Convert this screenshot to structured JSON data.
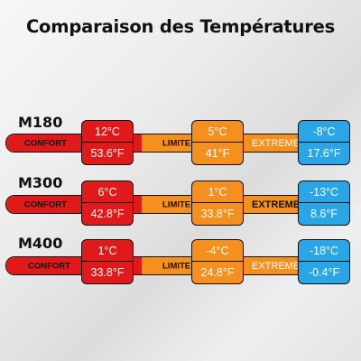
{
  "title": "Comparaison des Températures",
  "labels": {
    "comfort": "CONFORT",
    "limit": "LIMITE",
    "extreme": "EXTREME"
  },
  "colors": {
    "comfort": "#e01a1a",
    "limit": "#f5901e",
    "extreme": "#2aa6e6"
  },
  "rows": [
    {
      "model": "M180",
      "comfort": {
        "c": "12°C",
        "f": "53.6°F"
      },
      "limit": {
        "c": "5°C",
        "f": "41°F"
      },
      "extreme": {
        "c": "-8°C",
        "f": "17.6°F"
      }
    },
    {
      "model": "M300",
      "comfort": {
        "c": "6°C",
        "f": "42.8°F"
      },
      "limit": {
        "c": "1°C",
        "f": "33.8°F"
      },
      "extreme": {
        "c": "-13°C",
        "f": "8.6°F"
      }
    },
    {
      "model": "M400",
      "comfort": {
        "c": "1°C",
        "f": "33.8°F"
      },
      "limit": {
        "c": "-4°C",
        "f": "24.8°F"
      },
      "extreme": {
        "c": "-18°C",
        "f": "-0.4°F"
      }
    }
  ]
}
